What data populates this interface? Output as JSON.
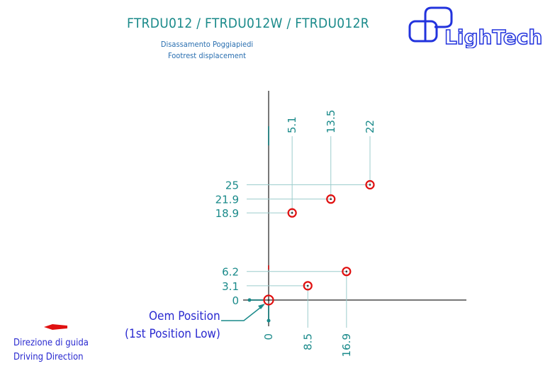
{
  "header": {
    "title": "FTRDU012 / FTRDU012W / FTRDU012R",
    "subtitle_it": "Disassamento Poggiapiedi",
    "subtitle_en": "Footrest displacement",
    "logo_text": "LighTech"
  },
  "legend": {
    "direction_it": "Direzione di guida",
    "direction_en": "Driving Direction"
  },
  "callout": {
    "line1": "Oem Position",
    "line2": "(1st Position Low)"
  },
  "colors": {
    "dimension": "#1a8a8a",
    "position_marker": "#e01010",
    "axis": "#777777",
    "text_blue": "#2a2ad0"
  },
  "positions": {
    "origin": {
      "x": 0,
      "y": 0
    },
    "lower_group": [
      {
        "x": 8.5,
        "y": 3.1
      },
      {
        "x": 16.9,
        "y": 6.2
      }
    ],
    "upper_group": [
      {
        "x": 5.1,
        "y": 18.9
      },
      {
        "x": 13.5,
        "y": 21.9
      },
      {
        "x": 22,
        "y": 25
      }
    ]
  },
  "labels": {
    "x_bottom": [
      "0",
      "8.5",
      "16.9"
    ],
    "x_top": [
      "5.1",
      "13.5",
      "22"
    ],
    "y_lower": [
      "0",
      "3.1",
      "6.2"
    ],
    "y_upper": [
      "18.9",
      "21.9",
      "25"
    ]
  }
}
